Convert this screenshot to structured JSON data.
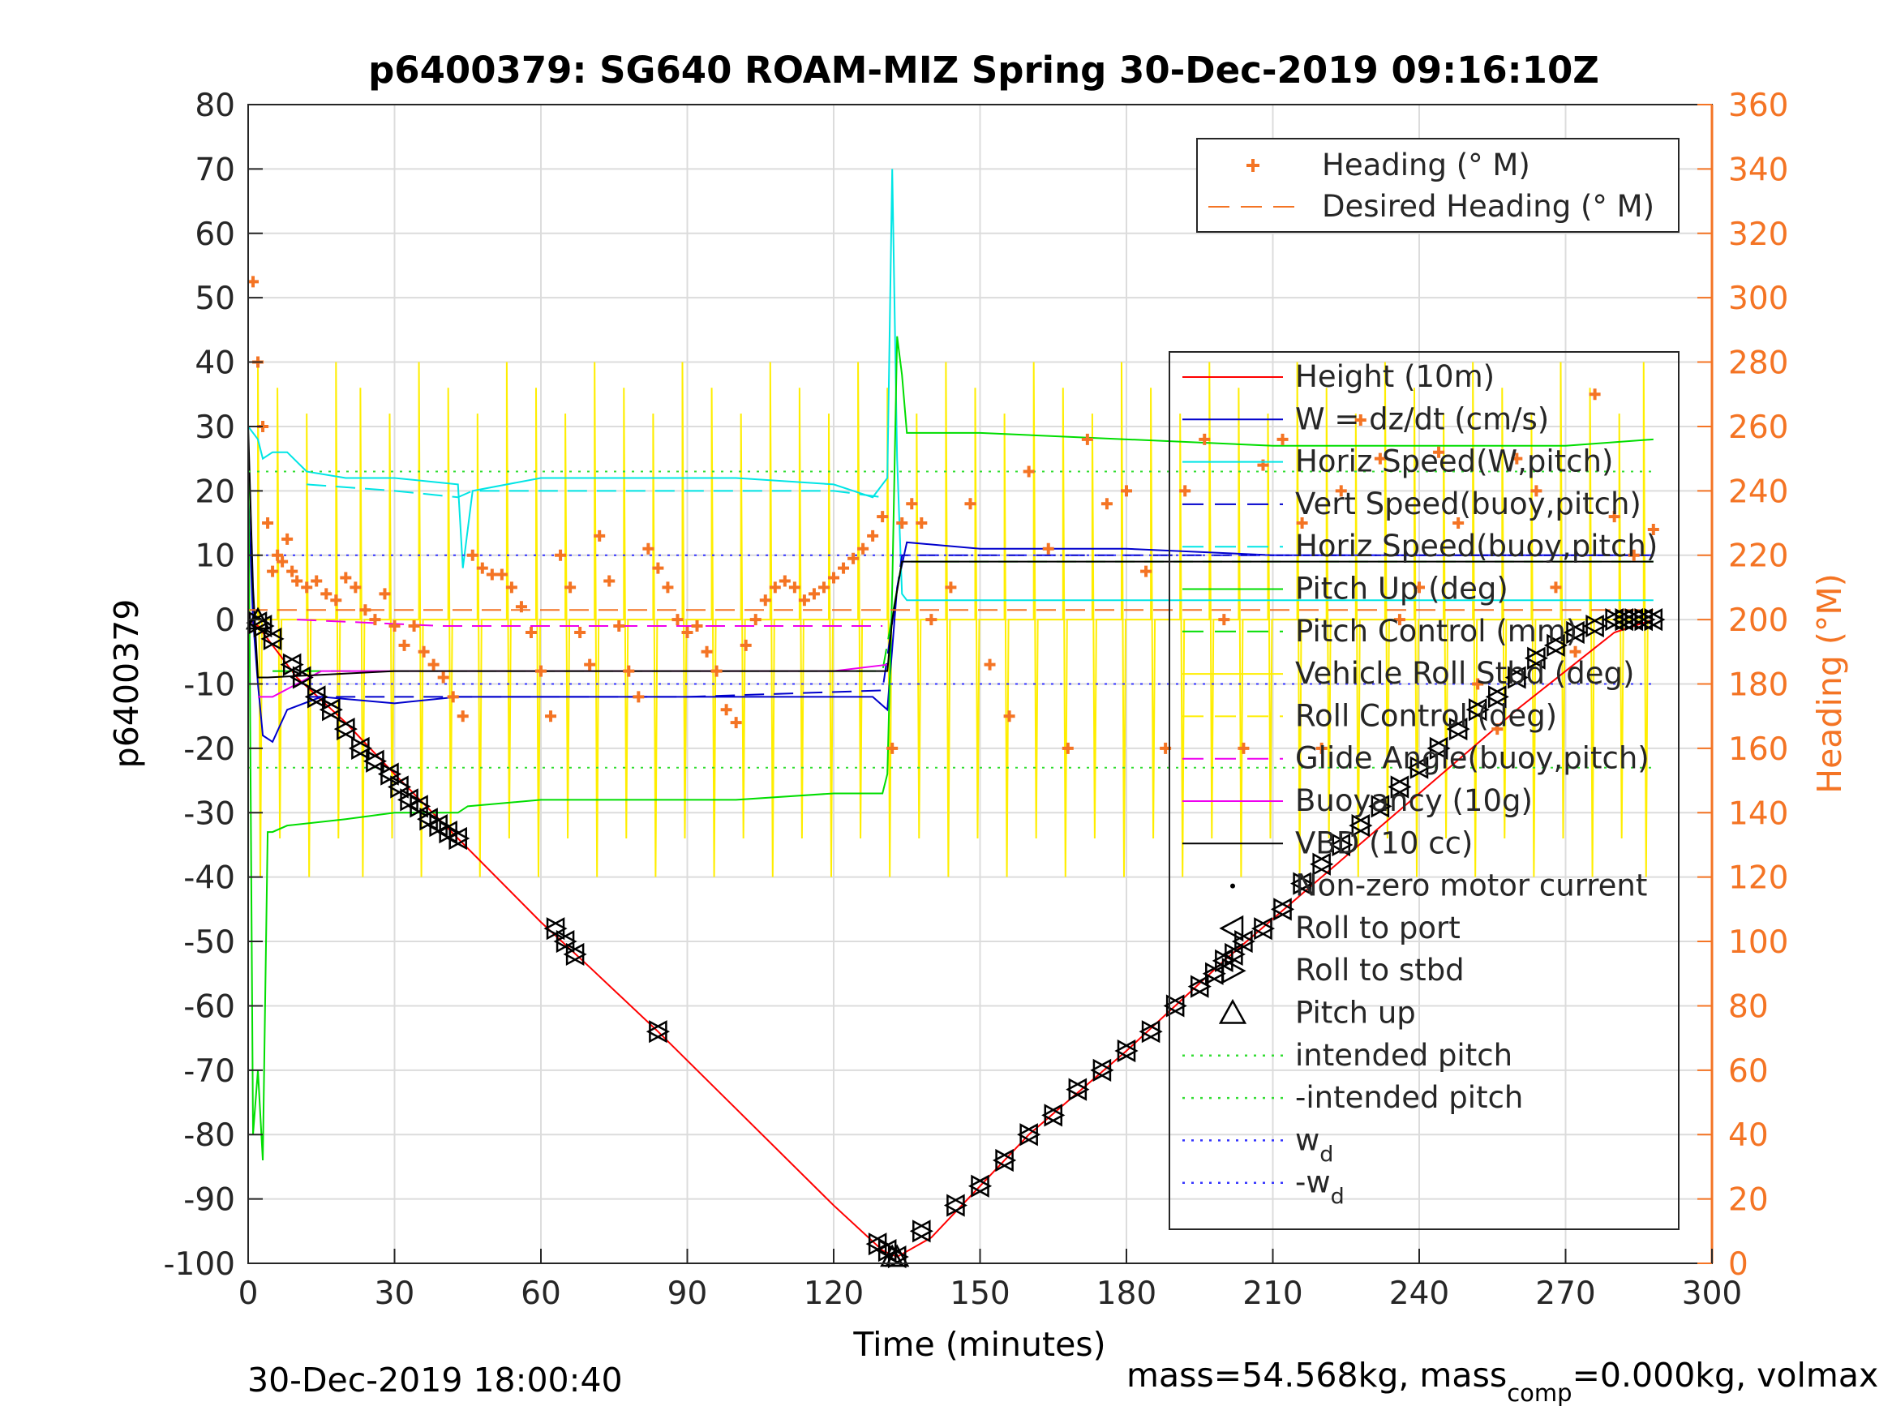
{
  "chart_data": {
    "type": "line",
    "title": "p6400379: SG640 ROAM-MIZ Spring 30-Dec-2019 09:16:10Z",
    "xlabel": "Time (minutes)",
    "ylabel": "p6400379",
    "y2label": "Heading (°M)",
    "xlim": [
      0,
      300
    ],
    "ylim": [
      -100,
      80
    ],
    "y2lim": [
      0,
      360
    ],
    "xticks": [
      0,
      30,
      60,
      90,
      120,
      150,
      180,
      210,
      240,
      270,
      300
    ],
    "yticks": [
      80,
      70,
      60,
      50,
      40,
      30,
      20,
      10,
      0,
      -10,
      -20,
      -30,
      -40,
      -50,
      -60,
      -70,
      -80,
      -90,
      -100
    ],
    "y2ticks": [
      360,
      340,
      320,
      300,
      280,
      260,
      240,
      220,
      200,
      180,
      160,
      140,
      120,
      100,
      80,
      60,
      40,
      20,
      0
    ],
    "grid": true,
    "footer_left": "30-Dec-2019 18:00:40",
    "footer_right": {
      "a": "mass=54.568kg, mass",
      "sub": "comp",
      "b": "=0.000kg, volmax"
    },
    "legend_heading": [
      {
        "label": "Heading (° M)",
        "color": "#f47424",
        "style": "plus"
      },
      {
        "label": "Desired Heading (° M)",
        "color": "#f47424",
        "style": "dash"
      }
    ],
    "legend_main": [
      {
        "label": "Height (10m)",
        "color": "#ff0000",
        "style": "solid"
      },
      {
        "label": "W = dz/dt (cm/s)",
        "color": "#0000cc",
        "style": "solid"
      },
      {
        "label": "Horiz Speed(W,pitch)",
        "color": "#00e5e5",
        "style": "solid"
      },
      {
        "label": "Vert Speed(buoy,pitch)",
        "color": "#0000cc",
        "style": "dash"
      },
      {
        "label": "Horiz Speed(buoy,pitch)",
        "color": "#00e5e5",
        "style": "dash"
      },
      {
        "label": "Pitch Up (deg)",
        "color": "#00dd00",
        "style": "solid"
      },
      {
        "label": "Pitch Control (mm)",
        "color": "#00dd00",
        "style": "dash"
      },
      {
        "label": "Vehicle Roll Stbd (deg)",
        "color": "#ffee00",
        "style": "solid"
      },
      {
        "label": "Roll Control (deg)",
        "color": "#ffee00",
        "style": "dash"
      },
      {
        "label": "Glide Angle(buoy,pitch)",
        "color": "#ee00ee",
        "style": "dash"
      },
      {
        "label": "Buoyancy (10g)",
        "color": "#ee00ee",
        "style": "solid"
      },
      {
        "label": "VBD (10 cc)",
        "color": "#000000",
        "style": "solid"
      },
      {
        "label": "Non-zero motor current",
        "color": "#000000",
        "style": "dot"
      },
      {
        "label": "Roll to port",
        "color": "#000000",
        "style": "tri-left"
      },
      {
        "label": "Roll to stbd",
        "color": "#000000",
        "style": "tri-right"
      },
      {
        "label": "Pitch up",
        "color": "#000000",
        "style": "tri-up"
      },
      {
        "label": "intended pitch",
        "color": "#33dd33",
        "style": "dot-line"
      },
      {
        "label": "-intended pitch",
        "color": "#33dd33",
        "style": "dot-line"
      },
      {
        "label": "w",
        "sub": "d",
        "color": "#3333ff",
        "style": "dot-line"
      },
      {
        "label": "-w",
        "sub": "d",
        "color": "#3333ff",
        "style": "dot-line"
      }
    ],
    "series": [
      {
        "name": "Height (10m)",
        "color": "#ff0000",
        "x": [
          0,
          2,
          10,
          20,
          30,
          43,
          60,
          70,
          84,
          100,
          120,
          130,
          133,
          140,
          160,
          180,
          200,
          220,
          240,
          260,
          280,
          288
        ],
        "y": [
          0,
          -1,
          -9,
          -16,
          -24,
          -34,
          -47,
          -54,
          -64,
          -76,
          -91,
          -98,
          -99,
          -96,
          -80,
          -67,
          -53,
          -40,
          -27,
          -14,
          -2,
          0
        ]
      },
      {
        "name": "W = dz/dt (cm/s)",
        "color": "#0000cc",
        "x": [
          0,
          1,
          2,
          3,
          5,
          8,
          15,
          30,
          43,
          45,
          60,
          80,
          100,
          120,
          128,
          131,
          133,
          135,
          150,
          180,
          210,
          240,
          270,
          288
        ],
        "y": [
          20,
          0,
          -10,
          -18,
          -19,
          -14,
          -12,
          -13,
          -12,
          -12,
          -12,
          -12,
          -12,
          -12,
          -12,
          -14,
          5,
          12,
          11,
          11,
          10,
          10,
          10,
          10
        ]
      },
      {
        "name": "Horiz Speed(W,pitch)",
        "color": "#00e5e5",
        "x": [
          0,
          2,
          3,
          5,
          8,
          12,
          20,
          30,
          43,
          44,
          46,
          60,
          80,
          100,
          120,
          128,
          131,
          132,
          133,
          134,
          135,
          150,
          180,
          210,
          240,
          288
        ],
        "y": [
          30,
          28,
          25,
          26,
          26,
          23,
          22,
          22,
          21,
          8,
          20,
          22,
          22,
          22,
          21,
          19,
          22,
          70,
          25,
          4,
          3,
          3,
          3,
          3,
          3,
          3
        ]
      },
      {
        "name": "Horiz Speed(buoy,pitch)",
        "color": "#00e5e5",
        "dash": true,
        "x": [
          12,
          30,
          43,
          46,
          60,
          80,
          100,
          120,
          130
        ],
        "y": [
          21,
          20,
          19,
          20,
          20,
          20,
          20,
          20,
          19
        ]
      },
      {
        "name": "Vert Speed(buoy,pitch)",
        "color": "#0000cc",
        "dash": true,
        "x": [
          12,
          30,
          60,
          90,
          130,
          134,
          150,
          180,
          210,
          240,
          288
        ],
        "y": [
          -12,
          -12,
          -12,
          -12,
          -11,
          10,
          10,
          10,
          10,
          10,
          10
        ]
      },
      {
        "name": "Pitch Up (deg)",
        "color": "#00dd00",
        "x": [
          0,
          1,
          2,
          3,
          4,
          5,
          8,
          20,
          30,
          43,
          45,
          60,
          80,
          100,
          120,
          130,
          131,
          132,
          133,
          134,
          135,
          150,
          180,
          210,
          240,
          270,
          288
        ],
        "y": [
          30,
          -80,
          -70,
          -84,
          -33,
          -33,
          -32,
          -31,
          -30,
          -30,
          -29,
          -28,
          -28,
          -28,
          -27,
          -27,
          -24,
          5,
          44,
          38,
          29,
          29,
          28,
          27,
          27,
          27,
          28
        ]
      },
      {
        "name": "Pitch Control (mm)",
        "color": "#00dd00",
        "dash": true,
        "x": [
          5,
          30,
          60,
          90,
          130,
          134,
          160,
          200,
          240,
          288
        ],
        "y": [
          -8,
          -8,
          -8,
          -8,
          -8,
          9,
          9,
          9,
          9,
          9
        ]
      },
      {
        "name": "Buoyancy (10g)",
        "color": "#ee00ee",
        "x": [
          2,
          5,
          10,
          15,
          20,
          30,
          60,
          90,
          120,
          131
        ],
        "y": [
          -12,
          -12,
          -10,
          -8,
          -8,
          -8,
          -8,
          -8,
          -8,
          -7
        ]
      },
      {
        "name": "Glide Angle(buoy,pitch)",
        "color": "#ee00ee",
        "dash": true,
        "x": [
          10,
          40,
          80,
          130
        ],
        "y": [
          0,
          -1,
          -1,
          -1
        ]
      },
      {
        "name": "VBD (10 cc)",
        "color": "#000000",
        "x": [
          0,
          1,
          2,
          3,
          4,
          30,
          60,
          90,
          120,
          131,
          132,
          134,
          160,
          200,
          240,
          270,
          280,
          288
        ],
        "y": [
          30,
          5,
          -9,
          -9,
          -9,
          -8,
          -8,
          -8,
          -8,
          -8,
          0,
          9,
          9,
          9,
          9,
          9,
          9,
          9
        ]
      },
      {
        "name": "intended pitch",
        "color": "#33dd33",
        "dotted": true,
        "x": [
          0,
          288
        ],
        "y": [
          23,
          23
        ]
      },
      {
        "name": "-intended pitch",
        "color": "#33dd33",
        "dotted": true,
        "x": [
          0,
          288
        ],
        "y": [
          -23,
          -23
        ]
      },
      {
        "name": "w_d",
        "color": "#3333ff",
        "dotted": true,
        "x": [
          0,
          288
        ],
        "y": [
          10,
          10
        ]
      },
      {
        "name": "-w_d",
        "color": "#3333ff",
        "dotted": true,
        "x": [
          0,
          288
        ],
        "y": [
          -10,
          -10
        ]
      },
      {
        "name": "Desired Heading (° M)",
        "color": "#f47424",
        "dash": true,
        "axis": "y2",
        "x": [
          0,
          288
        ],
        "y": [
          203,
          203
        ]
      }
    ],
    "roll_spikes": {
      "color": "#ffee00",
      "x": [
        2,
        6,
        12,
        18,
        23,
        29,
        35,
        41,
        47,
        53,
        59,
        65,
        71,
        77,
        83,
        89,
        95,
        101,
        107,
        113,
        119,
        125,
        131,
        137,
        143,
        149,
        155,
        161,
        167,
        173,
        179,
        185,
        191,
        197,
        203,
        209,
        215,
        221,
        227,
        233,
        239,
        245,
        251,
        257,
        263,
        269,
        275,
        281,
        286
      ],
      "high": 40,
      "low": -40
    },
    "heading_points": {
      "color": "#f47424",
      "x": [
        1,
        2,
        3,
        4,
        5,
        6,
        7,
        8,
        9,
        10,
        12,
        14,
        16,
        18,
        20,
        22,
        24,
        26,
        28,
        30,
        32,
        34,
        36,
        38,
        40,
        42,
        44,
        46,
        48,
        50,
        52,
        54,
        56,
        58,
        60,
        62,
        64,
        66,
        68,
        70,
        72,
        74,
        76,
        78,
        80,
        82,
        84,
        86,
        88,
        90,
        92,
        94,
        96,
        98,
        100,
        102,
        104,
        106,
        108,
        110,
        112,
        114,
        116,
        118,
        120,
        122,
        124,
        126,
        128,
        130,
        132,
        134,
        136,
        138,
        140,
        144,
        148,
        152,
        156,
        160,
        164,
        168,
        172,
        176,
        180,
        184,
        188,
        192,
        196,
        200,
        204,
        208,
        212,
        216,
        220,
        224,
        228,
        232,
        236,
        240,
        244,
        248,
        252,
        256,
        260,
        264,
        268,
        272,
        276,
        280,
        284,
        288
      ],
      "y": [
        305,
        280,
        260,
        230,
        215,
        220,
        218,
        225,
        215,
        212,
        210,
        212,
        208,
        206,
        213,
        210,
        203,
        200,
        208,
        198,
        192,
        198,
        190,
        186,
        182,
        176,
        170,
        220,
        216,
        214,
        214,
        210,
        204,
        196,
        184,
        170,
        220,
        210,
        196,
        186,
        226,
        212,
        198,
        184,
        176,
        222,
        216,
        210,
        200,
        196,
        198,
        190,
        184,
        172,
        168,
        192,
        200,
        206,
        210,
        212,
        210,
        206,
        208,
        210,
        213,
        216,
        219,
        222,
        226,
        232,
        160,
        230,
        236,
        230,
        200,
        210,
        236,
        186,
        170,
        246,
        222,
        160,
        256,
        236,
        240,
        215,
        160,
        240,
        256,
        200,
        160,
        248,
        256,
        230,
        160,
        240,
        262,
        250,
        200,
        210,
        252,
        230,
        180,
        166,
        250,
        240,
        210,
        190,
        270,
        232,
        220,
        228
      ]
    },
    "markers_roll_port": {
      "x": [
        2,
        3,
        5,
        9,
        11,
        14,
        17,
        20,
        23,
        26,
        29,
        31,
        33,
        35,
        37,
        39,
        41,
        43,
        63,
        65,
        67,
        84,
        129,
        131,
        133,
        138,
        145,
        150,
        155,
        160,
        165,
        170,
        175,
        180,
        185,
        190,
        195,
        198,
        200,
        202,
        204,
        208,
        212,
        216,
        220,
        224,
        228,
        232,
        236,
        240,
        244,
        248,
        252,
        256,
        260,
        264,
        268,
        272,
        276,
        280,
        282,
        284,
        286,
        288
      ],
      "y": [
        -0.5,
        -1,
        -3,
        -7,
        -9,
        -12,
        -14,
        -17,
        -20,
        -22,
        -24,
        -26,
        -28,
        -29,
        -31,
        -32,
        -33,
        -34,
        -48,
        -50,
        -52,
        -64,
        -97,
        -98,
        -99,
        -95,
        -91,
        -88,
        -84,
        -80,
        -77,
        -73,
        -70,
        -67,
        -64,
        -60,
        -57,
        -55,
        -53,
        -52,
        -50,
        -48,
        -45,
        -41,
        -38,
        -35,
        -32,
        -29,
        -26,
        -23,
        -20,
        -17,
        -14,
        -12,
        -9,
        -6,
        -4,
        -2,
        -1,
        0,
        0,
        0,
        0,
        0
      ]
    },
    "markers_pitch_up": {
      "x": [
        2,
        132,
        133
      ],
      "y": [
        0,
        -99,
        -99
      ]
    }
  }
}
